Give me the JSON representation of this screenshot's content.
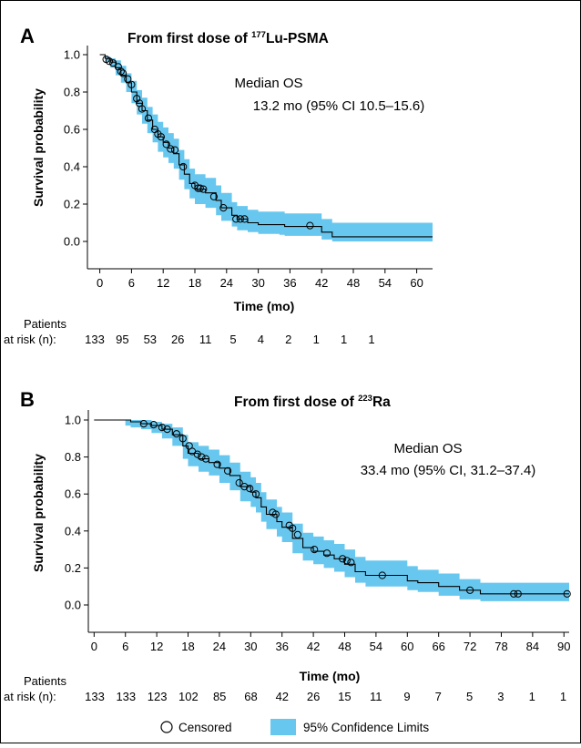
{
  "chart_data": [
    {
      "type": "line",
      "subtype": "kaplan-meier",
      "panel": "A",
      "title_prefix": "From first dose of ",
      "title_isotope": "177",
      "title_suffix": "Lu-PSMA",
      "xlabel": "Time (mo)",
      "ylabel": "Survival probability",
      "xlim": [
        0,
        63
      ],
      "ylim": [
        0,
        1.0
      ],
      "xticks": [
        0,
        6,
        12,
        18,
        24,
        30,
        36,
        42,
        48,
        54,
        60
      ],
      "yticks": [
        "0.0",
        "0.2",
        "0.4",
        "0.6",
        "0.8",
        "1.0"
      ],
      "annotation_line1": "Median OS",
      "annotation_line2": "13.2 mo (95% CI 10.5–15.6)",
      "at_risk_label_line1": "Patients",
      "at_risk_label_line2": "at risk (n):",
      "at_risk": [
        "133",
        "95",
        "53",
        "26",
        "11",
        "5",
        "4",
        "2",
        "1",
        "1",
        "1"
      ],
      "survival": [
        [
          0,
          1.0
        ],
        [
          1,
          0.98
        ],
        [
          2,
          0.96
        ],
        [
          3,
          0.93
        ],
        [
          4,
          0.89
        ],
        [
          5,
          0.85
        ],
        [
          6,
          0.8
        ],
        [
          7,
          0.74
        ],
        [
          8,
          0.7
        ],
        [
          9,
          0.65
        ],
        [
          10,
          0.6
        ],
        [
          11,
          0.56
        ],
        [
          12,
          0.53
        ],
        [
          13,
          0.5
        ],
        [
          14,
          0.47
        ],
        [
          15,
          0.41
        ],
        [
          16,
          0.36
        ],
        [
          17,
          0.31
        ],
        [
          18,
          0.28
        ],
        [
          20,
          0.26
        ],
        [
          22,
          0.22
        ],
        [
          23,
          0.18
        ],
        [
          25,
          0.14
        ],
        [
          26,
          0.12
        ],
        [
          28,
          0.1
        ],
        [
          30,
          0.09
        ],
        [
          34,
          0.09
        ],
        [
          35,
          0.08
        ],
        [
          42,
          0.05
        ],
        [
          44,
          0.025
        ],
        [
          63,
          0.025
        ]
      ],
      "ci_lower": [
        [
          0,
          1.0
        ],
        [
          1,
          0.96
        ],
        [
          2,
          0.93
        ],
        [
          3,
          0.89
        ],
        [
          4,
          0.85
        ],
        [
          5,
          0.8
        ],
        [
          6,
          0.74
        ],
        [
          7,
          0.68
        ],
        [
          8,
          0.63
        ],
        [
          9,
          0.58
        ],
        [
          10,
          0.53
        ],
        [
          11,
          0.48
        ],
        [
          12,
          0.45
        ],
        [
          13,
          0.42
        ],
        [
          14,
          0.39
        ],
        [
          15,
          0.33
        ],
        [
          16,
          0.28
        ],
        [
          17,
          0.23
        ],
        [
          18,
          0.2
        ],
        [
          20,
          0.18
        ],
        [
          22,
          0.14
        ],
        [
          23,
          0.11
        ],
        [
          25,
          0.08
        ],
        [
          26,
          0.06
        ],
        [
          28,
          0.05
        ],
        [
          30,
          0.04
        ],
        [
          34,
          0.035
        ],
        [
          35,
          0.03
        ],
        [
          42,
          0.01
        ],
        [
          44,
          0.0
        ],
        [
          63,
          0.0
        ]
      ],
      "ci_upper": [
        [
          0,
          1.0
        ],
        [
          1,
          0.99
        ],
        [
          2,
          0.98
        ],
        [
          3,
          0.97
        ],
        [
          4,
          0.94
        ],
        [
          5,
          0.9
        ],
        [
          6,
          0.86
        ],
        [
          7,
          0.81
        ],
        [
          8,
          0.77
        ],
        [
          9,
          0.72
        ],
        [
          10,
          0.68
        ],
        [
          11,
          0.64
        ],
        [
          12,
          0.61
        ],
        [
          13,
          0.58
        ],
        [
          14,
          0.55
        ],
        [
          15,
          0.49
        ],
        [
          16,
          0.44
        ],
        [
          17,
          0.39
        ],
        [
          18,
          0.36
        ],
        [
          20,
          0.34
        ],
        [
          22,
          0.3
        ],
        [
          23,
          0.26
        ],
        [
          25,
          0.21
        ],
        [
          26,
          0.19
        ],
        [
          28,
          0.17
        ],
        [
          30,
          0.16
        ],
        [
          34,
          0.16
        ],
        [
          35,
          0.15
        ],
        [
          42,
          0.12
        ],
        [
          44,
          0.1
        ],
        [
          63,
          0.1
        ]
      ],
      "censored": [
        [
          1.2,
          0.975
        ],
        [
          1.8,
          0.965
        ],
        [
          2.5,
          0.955
        ],
        [
          3.5,
          0.935
        ],
        [
          4.0,
          0.91
        ],
        [
          4.4,
          0.9
        ],
        [
          5.3,
          0.87
        ],
        [
          6.0,
          0.84
        ],
        [
          7.0,
          0.765
        ],
        [
          7.5,
          0.74
        ],
        [
          8.0,
          0.71
        ],
        [
          9.2,
          0.66
        ],
        [
          10.4,
          0.6
        ],
        [
          11.0,
          0.575
        ],
        [
          11.6,
          0.56
        ],
        [
          12.6,
          0.52
        ],
        [
          13.4,
          0.495
        ],
        [
          14.2,
          0.49
        ],
        [
          15.8,
          0.4
        ],
        [
          18.0,
          0.3
        ],
        [
          18.6,
          0.285
        ],
        [
          19.0,
          0.285
        ],
        [
          19.6,
          0.28
        ],
        [
          21.6,
          0.24
        ],
        [
          23.4,
          0.18
        ],
        [
          25.8,
          0.12
        ],
        [
          26.6,
          0.12
        ],
        [
          27.4,
          0.12
        ],
        [
          39.8,
          0.085
        ]
      ],
      "ci_color": "#68c7ef",
      "line_color": "#000000"
    },
    {
      "type": "line",
      "subtype": "kaplan-meier",
      "panel": "B",
      "title_prefix": "From first dose of ",
      "title_isotope": "223",
      "title_suffix": "Ra",
      "xlabel": "Time (mo)",
      "ylabel": "Survival probability",
      "xlim": [
        -1,
        91
      ],
      "ylim": [
        0,
        1.0
      ],
      "xticks": [
        0,
        6,
        12,
        18,
        24,
        30,
        36,
        42,
        48,
        54,
        60,
        66,
        72,
        78,
        84,
        90
      ],
      "yticks": [
        "0.0",
        "0.2",
        "0.4",
        "0.6",
        "0.8",
        "1.0"
      ],
      "annotation_line1": "Median OS",
      "annotation_line2": "33.4 mo (95% CI, 31.2–37.4)",
      "at_risk_label_line1": "Patients",
      "at_risk_label_line2": "at risk (n):",
      "at_risk": [
        "133",
        "133",
        "123",
        "102",
        "85",
        "68",
        "42",
        "26",
        "15",
        "11",
        "9",
        "7",
        "5",
        "3",
        "1",
        "1"
      ],
      "survival": [
        [
          0,
          1.0
        ],
        [
          6,
          1.0
        ],
        [
          7,
          0.99
        ],
        [
          9,
          0.98
        ],
        [
          11,
          0.97
        ],
        [
          13,
          0.95
        ],
        [
          15,
          0.92
        ],
        [
          17,
          0.86
        ],
        [
          18,
          0.82
        ],
        [
          20,
          0.79
        ],
        [
          22,
          0.77
        ],
        [
          24,
          0.74
        ],
        [
          26,
          0.7
        ],
        [
          28,
          0.64
        ],
        [
          30,
          0.61
        ],
        [
          31,
          0.58
        ],
        [
          32,
          0.53
        ],
        [
          33,
          0.49
        ],
        [
          35,
          0.45
        ],
        [
          36,
          0.42
        ],
        [
          38,
          0.36
        ],
        [
          40,
          0.31
        ],
        [
          42,
          0.29
        ],
        [
          44,
          0.27
        ],
        [
          46,
          0.25
        ],
        [
          48,
          0.22
        ],
        [
          50,
          0.18
        ],
        [
          52,
          0.16
        ],
        [
          60,
          0.13
        ],
        [
          62,
          0.12
        ],
        [
          66,
          0.1
        ],
        [
          70,
          0.08
        ],
        [
          74,
          0.06
        ],
        [
          91,
          0.06
        ]
      ],
      "ci_lower": [
        [
          0,
          1.0
        ],
        [
          6,
          0.97
        ],
        [
          7,
          0.96
        ],
        [
          9,
          0.95
        ],
        [
          11,
          0.93
        ],
        [
          13,
          0.9
        ],
        [
          15,
          0.86
        ],
        [
          17,
          0.79
        ],
        [
          18,
          0.75
        ],
        [
          20,
          0.72
        ],
        [
          22,
          0.7
        ],
        [
          24,
          0.66
        ],
        [
          26,
          0.62
        ],
        [
          28,
          0.56
        ],
        [
          30,
          0.53
        ],
        [
          31,
          0.5
        ],
        [
          32,
          0.45
        ],
        [
          33,
          0.41
        ],
        [
          35,
          0.37
        ],
        [
          36,
          0.34
        ],
        [
          38,
          0.28
        ],
        [
          40,
          0.24
        ],
        [
          42,
          0.22
        ],
        [
          44,
          0.2
        ],
        [
          46,
          0.18
        ],
        [
          48,
          0.15
        ],
        [
          50,
          0.12
        ],
        [
          52,
          0.1
        ],
        [
          60,
          0.08
        ],
        [
          62,
          0.07
        ],
        [
          66,
          0.05
        ],
        [
          70,
          0.03
        ],
        [
          74,
          0.02
        ],
        [
          91,
          0.02
        ]
      ],
      "ci_upper": [
        [
          0,
          1.0
        ],
        [
          6,
          1.0
        ],
        [
          7,
          1.0
        ],
        [
          9,
          1.0
        ],
        [
          11,
          0.99
        ],
        [
          13,
          0.98
        ],
        [
          15,
          0.96
        ],
        [
          17,
          0.92
        ],
        [
          18,
          0.88
        ],
        [
          20,
          0.86
        ],
        [
          22,
          0.84
        ],
        [
          24,
          0.81
        ],
        [
          26,
          0.77
        ],
        [
          28,
          0.72
        ],
        [
          30,
          0.69
        ],
        [
          31,
          0.66
        ],
        [
          32,
          0.61
        ],
        [
          33,
          0.57
        ],
        [
          35,
          0.53
        ],
        [
          36,
          0.5
        ],
        [
          38,
          0.44
        ],
        [
          40,
          0.39
        ],
        [
          42,
          0.37
        ],
        [
          44,
          0.35
        ],
        [
          46,
          0.33
        ],
        [
          48,
          0.3
        ],
        [
          50,
          0.26
        ],
        [
          52,
          0.24
        ],
        [
          60,
          0.21
        ],
        [
          62,
          0.19
        ],
        [
          66,
          0.17
        ],
        [
          70,
          0.14
        ],
        [
          74,
          0.12
        ],
        [
          91,
          0.12
        ]
      ],
      "censored": [
        [
          9.5,
          0.98
        ],
        [
          11.4,
          0.975
        ],
        [
          13.0,
          0.96
        ],
        [
          14.0,
          0.95
        ],
        [
          15.8,
          0.925
        ],
        [
          17.0,
          0.9
        ],
        [
          18.2,
          0.86
        ],
        [
          18.8,
          0.83
        ],
        [
          19.8,
          0.815
        ],
        [
          20.6,
          0.8
        ],
        [
          21.4,
          0.79
        ],
        [
          23.6,
          0.76
        ],
        [
          25.6,
          0.725
        ],
        [
          27.8,
          0.66
        ],
        [
          28.8,
          0.64
        ],
        [
          29.8,
          0.63
        ],
        [
          31.0,
          0.6
        ],
        [
          34.2,
          0.5
        ],
        [
          34.8,
          0.49
        ],
        [
          37.4,
          0.43
        ],
        [
          38.0,
          0.415
        ],
        [
          39.0,
          0.38
        ],
        [
          42.2,
          0.3
        ],
        [
          44.6,
          0.28
        ],
        [
          47.6,
          0.25
        ],
        [
          48.4,
          0.24
        ],
        [
          49.2,
          0.23
        ],
        [
          55.2,
          0.16
        ],
        [
          72.0,
          0.08
        ],
        [
          80.4,
          0.06
        ],
        [
          81.2,
          0.06
        ],
        [
          90.6,
          0.06
        ]
      ],
      "ci_color": "#68c7ef",
      "line_color": "#000000"
    }
  ],
  "legend": {
    "censored_label": "Censored",
    "ci_label": "95% Confidence Limits",
    "placement": "bottom-center"
  }
}
